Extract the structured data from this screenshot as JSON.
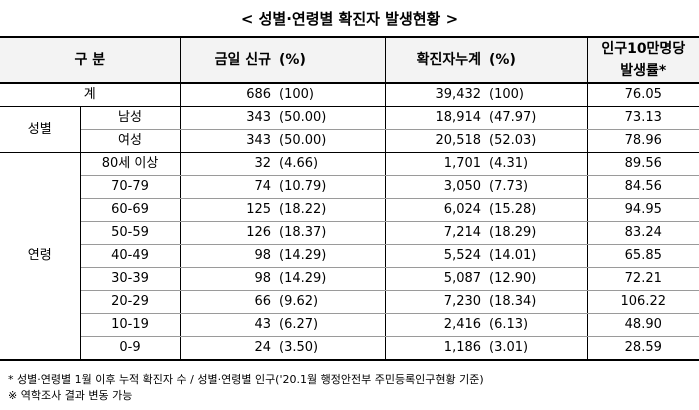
{
  "title": "< 성별·연령별 확진자 발생현황 >",
  "header": {
    "category": "구 분",
    "new_cases": "금일 신규",
    "new_pct": "(%)",
    "total_cases": "확진자누계",
    "total_pct": "(%)",
    "rate_line1": "인구10만명당",
    "rate_line2": "발생률*"
  },
  "total_row": {
    "label": "계",
    "new": "686",
    "new_pct": "(100)",
    "total": "39,432",
    "total_pct": "(100)",
    "rate": "76.05"
  },
  "sex_group": {
    "label": "성별",
    "rows": [
      {
        "label": "남성",
        "new": "343",
        "new_pct": "(50.00)",
        "total": "18,914",
        "total_pct": "(47.97)",
        "rate": "73.13"
      },
      {
        "label": "여성",
        "new": "343",
        "new_pct": "(50.00)",
        "total": "20,518",
        "total_pct": "(52.03)",
        "rate": "78.96"
      }
    ]
  },
  "age_group": {
    "label": "연령",
    "rows": [
      {
        "label": "80세 이상",
        "new": "32",
        "new_pct": "(4.66)",
        "total": "1,701",
        "total_pct": "(4.31)",
        "rate": "89.56"
      },
      {
        "label": "70-79",
        "new": "74",
        "new_pct": "(10.79)",
        "total": "3,050",
        "total_pct": "(7.73)",
        "rate": "84.56"
      },
      {
        "label": "60-69",
        "new": "125",
        "new_pct": "(18.22)",
        "total": "6,024",
        "total_pct": "(15.28)",
        "rate": "94.95"
      },
      {
        "label": "50-59",
        "new": "126",
        "new_pct": "(18.37)",
        "total": "7,214",
        "total_pct": "(18.29)",
        "rate": "83.24"
      },
      {
        "label": "40-49",
        "new": "98",
        "new_pct": "(14.29)",
        "total": "5,524",
        "total_pct": "(14.01)",
        "rate": "65.85"
      },
      {
        "label": "30-39",
        "new": "98",
        "new_pct": "(14.29)",
        "total": "5,087",
        "total_pct": "(12.90)",
        "rate": "72.21"
      },
      {
        "label": "20-29",
        "new": "66",
        "new_pct": "(9.62)",
        "total": "7,230",
        "total_pct": "(18.34)",
        "rate": "106.22"
      },
      {
        "label": "10-19",
        "new": "43",
        "new_pct": "(6.27)",
        "total": "2,416",
        "total_pct": "(6.13)",
        "rate": "48.90"
      },
      {
        "label": "0-9",
        "new": "24",
        "new_pct": "(3.50)",
        "total": "1,186",
        "total_pct": "(3.01)",
        "rate": "28.59"
      }
    ]
  },
  "notes": {
    "note1": "* 성별·연령별 1월 이후 누적 확진자 수 / 성별·연령별 인구('20.1월 행정안전부 주민등록인구현황 기준)",
    "note2": "※ 역학조사 결과 변동 가능"
  }
}
